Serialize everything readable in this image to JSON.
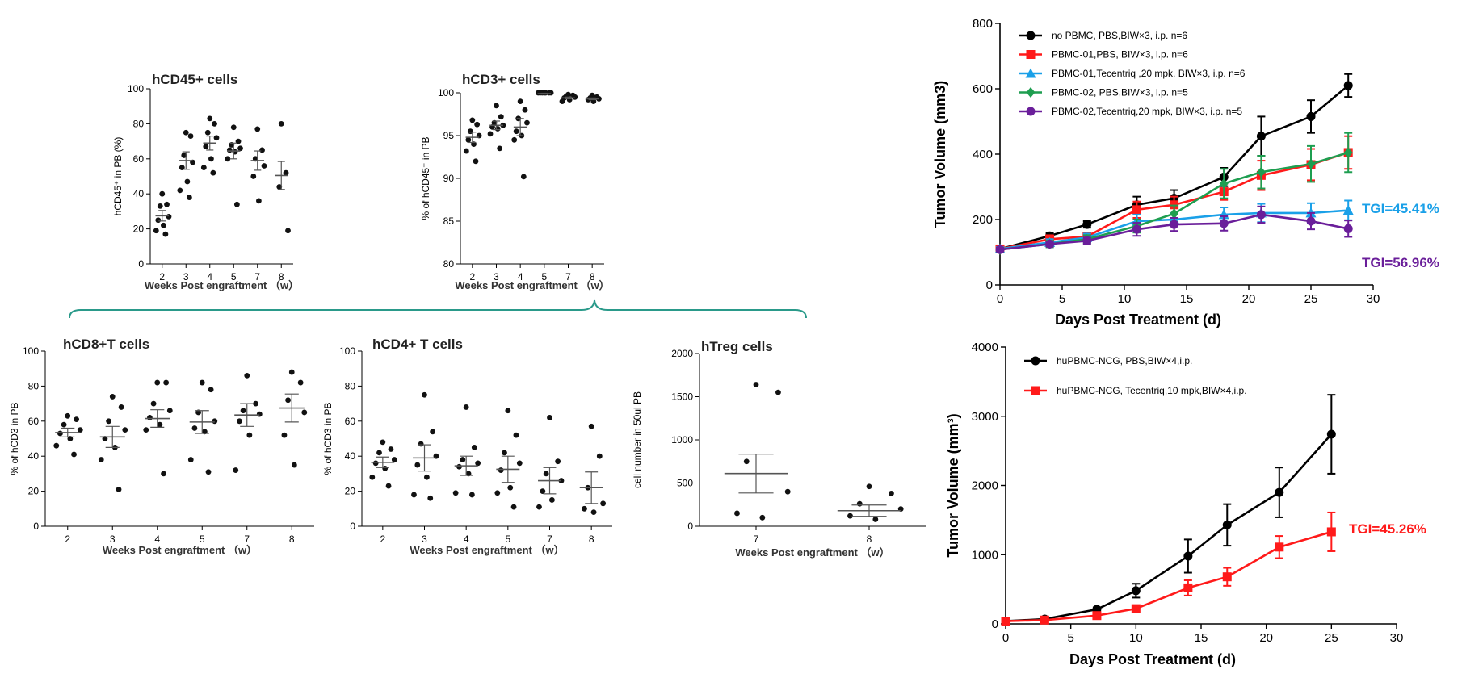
{
  "chart_data": [
    {
      "type": "scatter",
      "title": "hCD45+ cells",
      "ylabel": "hCD45⁺ in PB (%)",
      "xlabel": "Weeks Post engraftment （w）",
      "ylim": [
        0,
        100
      ],
      "yticks": [
        0,
        20,
        40,
        60,
        80,
        100
      ],
      "categories": [
        "2",
        "3",
        "4",
        "5",
        "7",
        "8"
      ],
      "groups": [
        {
          "points": [
            40,
            34,
            33,
            27,
            25,
            22,
            19,
            17
          ],
          "mean": 27.5,
          "sem": 3
        },
        {
          "points": [
            75,
            73,
            62,
            58,
            55,
            47,
            42,
            38
          ],
          "mean": 59,
          "sem": 5
        },
        {
          "points": [
            83,
            80,
            75,
            72,
            67,
            60,
            55,
            52
          ],
          "mean": 69,
          "sem": 4
        },
        {
          "points": [
            78,
            70,
            68,
            66,
            65,
            64,
            60,
            34
          ],
          "mean": 64.5,
          "sem": 4.5
        },
        {
          "points": [
            77,
            65,
            60,
            56,
            50,
            36
          ],
          "mean": 59,
          "sem": 5.5
        },
        {
          "points": [
            80,
            52,
            44,
            19
          ],
          "mean": 50.5,
          "sem": 8
        }
      ]
    },
    {
      "type": "scatter",
      "title": "hCD3+ cells",
      "ylabel": "% of hCD45⁺ in PB",
      "xlabel": "Weeks Post engraftment （w）",
      "ylim": [
        80,
        100
      ],
      "yticks": [
        80,
        85,
        90,
        95,
        100
      ],
      "categories": [
        "2",
        "3",
        "4",
        "5",
        "7",
        "8"
      ],
      "groups": [
        {
          "points": [
            96.8,
            96.3,
            95.5,
            95.0,
            94.5,
            94.0,
            93.2,
            92.0
          ],
          "mean": 94.8,
          "sem": 0.6
        },
        {
          "points": [
            98.5,
            97.2,
            96.5,
            96.2,
            96.0,
            95.8,
            95.2,
            93.5
          ],
          "mean": 96.2,
          "sem": 0.5
        },
        {
          "points": [
            99.0,
            98.0,
            97.0,
            96.5,
            95.5,
            95.0,
            94.5,
            90.2
          ],
          "mean": 96.0,
          "sem": 1.0
        },
        {
          "points": [
            100,
            100,
            100,
            100,
            100,
            100,
            100
          ],
          "mean": 99.9,
          "sem": 0.05
        },
        {
          "points": [
            99.8,
            99.7,
            99.6,
            99.5,
            99.4,
            99.2,
            99.0
          ],
          "mean": 99.4,
          "sem": 0.1
        },
        {
          "points": [
            99.7,
            99.5,
            99.4,
            99.3,
            99.2,
            99.0
          ],
          "mean": 99.3,
          "sem": 0.1
        }
      ]
    },
    {
      "type": "scatter",
      "title": "hCD8+T cells",
      "ylabel": "% of hCD3 in PB",
      "xlabel": "Weeks Post engraftment （w）",
      "ylim": [
        0,
        100
      ],
      "yticks": [
        0,
        20,
        40,
        60,
        80,
        100
      ],
      "categories": [
        "2",
        "3",
        "4",
        "5",
        "7",
        "8"
      ],
      "groups": [
        {
          "points": [
            63,
            61,
            58,
            55,
            53,
            50,
            46,
            41
          ],
          "mean": 53.5,
          "sem": 2.5
        },
        {
          "points": [
            74,
            68,
            60,
            55,
            50,
            45,
            38,
            21
          ],
          "mean": 51,
          "sem": 6
        },
        {
          "points": [
            82,
            82,
            70,
            66,
            62,
            58,
            55,
            30
          ],
          "mean": 61.5,
          "sem": 5
        },
        {
          "points": [
            82,
            78,
            65,
            60,
            56,
            54,
            38,
            31
          ],
          "mean": 59.5,
          "sem": 6.5
        },
        {
          "points": [
            86,
            70,
            66,
            64,
            60,
            52,
            32
          ],
          "mean": 63.5,
          "sem": 6.5
        },
        {
          "points": [
            88,
            82,
            72,
            65,
            52,
            35
          ],
          "mean": 67.5,
          "sem": 8
        }
      ]
    },
    {
      "type": "scatter",
      "title": "hCD4+ T cells",
      "ylabel": "% of hCD3 in PB",
      "xlabel": "Weeks Post engraftment （w）",
      "ylim": [
        0,
        100
      ],
      "yticks": [
        0,
        20,
        40,
        60,
        80,
        100
      ],
      "categories": [
        "2",
        "3",
        "4",
        "5",
        "7",
        "8"
      ],
      "groups": [
        {
          "points": [
            48,
            44,
            42,
            38,
            36,
            33,
            28,
            23
          ],
          "mean": 36.5,
          "sem": 3
        },
        {
          "points": [
            75,
            54,
            47,
            40,
            35,
            28,
            18,
            16
          ],
          "mean": 39,
          "sem": 7.5
        },
        {
          "points": [
            68,
            45,
            38,
            36,
            34,
            30,
            19,
            18
          ],
          "mean": 34.5,
          "sem": 5.5
        },
        {
          "points": [
            66,
            52,
            42,
            36,
            32,
            22,
            19,
            11
          ],
          "mean": 32.5,
          "sem": 7.5
        },
        {
          "points": [
            62,
            37,
            30,
            26,
            20,
            15,
            11
          ],
          "mean": 26,
          "sem": 7.5
        },
        {
          "points": [
            57,
            40,
            22,
            13,
            10,
            8
          ],
          "mean": 22,
          "sem": 9
        }
      ]
    },
    {
      "type": "scatter",
      "title": "hTreg cells",
      "ylabel": "cell number in 50ul PB",
      "xlabel": "Weeks Post engraftment （w）",
      "ylim": [
        0,
        2000
      ],
      "yticks": [
        0,
        500,
        1000,
        1500,
        2000
      ],
      "categories": [
        "7",
        "8"
      ],
      "groups": [
        {
          "points": [
            1640,
            1550,
            750,
            400,
            150,
            100
          ],
          "mean": 610,
          "sem": 225
        },
        {
          "points": [
            460,
            380,
            260,
            200,
            120,
            80
          ],
          "mean": 180,
          "sem": 65
        }
      ]
    },
    {
      "type": "line",
      "ylabel": "Tumor Volume (mm3)",
      "xlabel": "Days Post Treatment (d)",
      "xlim": [
        0,
        30
      ],
      "ylim": [
        0,
        800
      ],
      "xticks": [
        0,
        5,
        10,
        15,
        20,
        25,
        30
      ],
      "yticks": [
        0,
        200,
        400,
        600,
        800
      ],
      "x": [
        0,
        4,
        7,
        11,
        14,
        18,
        21,
        25,
        28
      ],
      "series": [
        {
          "name": "no PBMC, PBS,BIW×3, i.p. n=6",
          "color": "#000000",
          "marker": "circle",
          "values": [
            110,
            150,
            185,
            245,
            265,
            330,
            455,
            515,
            610
          ],
          "err": [
            6,
            8,
            10,
            25,
            25,
            28,
            60,
            50,
            35
          ]
        },
        {
          "name": "PBMC-01,PBS, BIW×3, i.p. n=6",
          "color": "#ff1a1a",
          "marker": "square",
          "values": [
            110,
            140,
            148,
            230,
            245,
            285,
            335,
            368,
            405
          ],
          "err": [
            6,
            12,
            12,
            25,
            25,
            25,
            45,
            48,
            50
          ]
        },
        {
          "name": "PBMC-01,Tecentriq ,20 mpk, BIW×3, i.p. n=6",
          "color": "#1aa0e8",
          "marker": "triangle",
          "values": [
            110,
            130,
            145,
            195,
            200,
            215,
            220,
            220,
            228
          ],
          "err": [
            6,
            10,
            12,
            20,
            20,
            22,
            28,
            30,
            30
          ]
        },
        {
          "name": "PBMC-02, PBS,BIW×3, i.p. n=5",
          "color": "#1e9e50",
          "marker": "diamond",
          "values": [
            108,
            125,
            140,
            180,
            218,
            310,
            345,
            370,
            405
          ],
          "err": [
            6,
            10,
            12,
            20,
            25,
            45,
            50,
            55,
            60
          ]
        },
        {
          "name": "PBMC-02,Tecentriq,20 mpk, BIW×3, i.p. n=5",
          "color": "#6a1e9a",
          "marker": "circle",
          "values": [
            108,
            125,
            135,
            170,
            185,
            188,
            215,
            195,
            172
          ],
          "err": [
            6,
            8,
            10,
            20,
            20,
            22,
            25,
            25,
            25
          ]
        }
      ],
      "annotations": [
        {
          "text": "TGI=45.41%",
          "color": "#1aa0e8"
        },
        {
          "text": "TGI=56.96%",
          "color": "#6a1e9a"
        }
      ]
    },
    {
      "type": "line",
      "ylabel": "Tumor Volume (mm³)",
      "xlabel": "Days Post Treatment (d)",
      "xlim": [
        0,
        30
      ],
      "ylim": [
        0,
        4000
      ],
      "xticks": [
        0,
        5,
        10,
        15,
        20,
        25,
        30
      ],
      "yticks": [
        0,
        1000,
        2000,
        3000,
        4000
      ],
      "x": [
        0,
        3,
        7,
        10,
        14,
        17,
        21,
        25
      ],
      "series": [
        {
          "name": "huPBMC-NCG, PBS,BIW×4,i.p.",
          "color": "#000000",
          "marker": "circle",
          "values": [
            40,
            70,
            210,
            480,
            980,
            1430,
            1900,
            2740
          ],
          "err": [
            10,
            15,
            30,
            100,
            240,
            300,
            360,
            570
          ]
        },
        {
          "name": "huPBMC-NCG, Tecentriq,10 mpk,BIW×4,i.p.",
          "color": "#ff1a1a",
          "marker": "square",
          "values": [
            40,
            55,
            120,
            220,
            520,
            680,
            1110,
            1330
          ],
          "err": [
            10,
            10,
            20,
            30,
            110,
            130,
            160,
            280
          ]
        }
      ],
      "annotations": [
        {
          "text": "TGI=45.26%",
          "color": "#ff1a1a"
        }
      ]
    }
  ]
}
